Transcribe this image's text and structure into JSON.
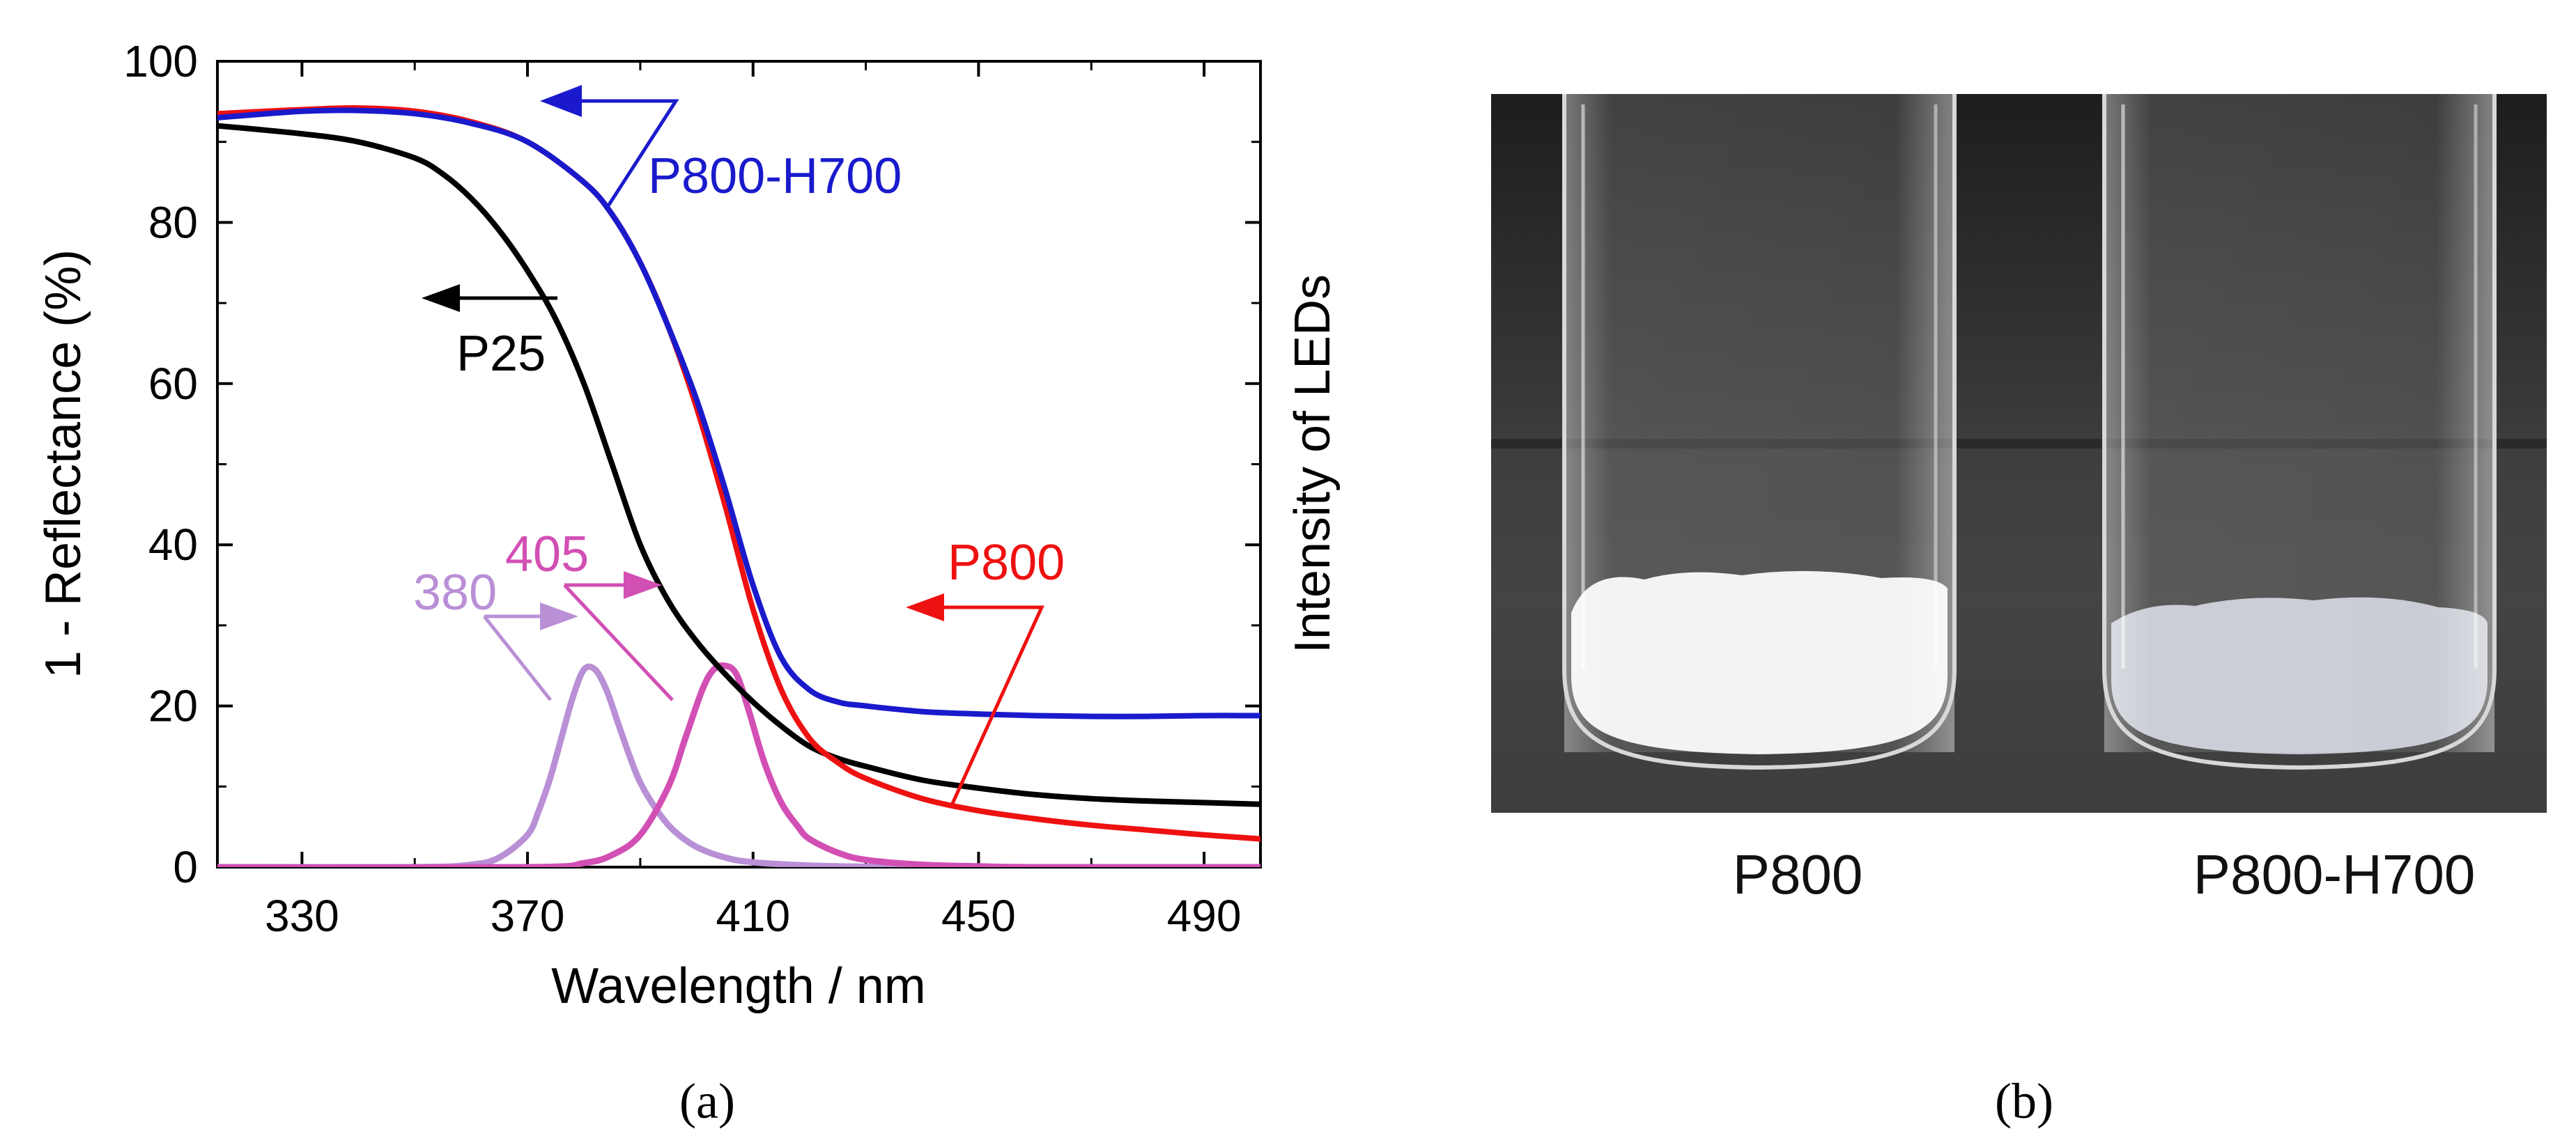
{
  "chart_data": {
    "type": "line",
    "xlabel": "Wavelength / nm",
    "ylabel": "1 - Reflectance (%)",
    "y2label": "Intensity of LEDs",
    "xlim": [
      315,
      500
    ],
    "ylim": [
      0,
      100
    ],
    "xticks": [
      330,
      370,
      410,
      450,
      490
    ],
    "yticks": [
      0,
      20,
      40,
      60,
      80,
      100
    ],
    "series": [
      {
        "name": "P800",
        "color": "#ee1111",
        "x": [
          315,
          330,
          340,
          350,
          360,
          370,
          380,
          385,
          390,
          395,
          400,
          405,
          410,
          415,
          420,
          425,
          430,
          440,
          450,
          460,
          470,
          480,
          490,
          500
        ],
        "y": [
          93.5,
          94.0,
          94.2,
          93.8,
          92.5,
          90.0,
          85.0,
          81.0,
          75.0,
          67.0,
          57.0,
          45.0,
          32.0,
          22.0,
          16.0,
          13.0,
          11.0,
          8.5,
          7.0,
          6.0,
          5.2,
          4.6,
          4.0,
          3.5
        ]
      },
      {
        "name": "P800-H700",
        "color": "#1a1acc",
        "x": [
          315,
          330,
          340,
          350,
          360,
          370,
          380,
          385,
          390,
          395,
          400,
          405,
          410,
          415,
          420,
          425,
          430,
          440,
          450,
          460,
          470,
          480,
          490,
          500
        ],
        "y": [
          93.0,
          93.8,
          93.9,
          93.5,
          92.3,
          90.0,
          85.0,
          81.0,
          75.0,
          67.0,
          58.0,
          47.0,
          35.0,
          26.0,
          22.0,
          20.5,
          20.0,
          19.3,
          19.0,
          18.8,
          18.7,
          18.7,
          18.8,
          18.8
        ]
      },
      {
        "name": "P25",
        "color": "#000000",
        "x": [
          315,
          330,
          340,
          350,
          355,
          360,
          365,
          370,
          375,
          380,
          385,
          390,
          395,
          400,
          405,
          410,
          415,
          420,
          425,
          430,
          440,
          450,
          460,
          470,
          480,
          490,
          500
        ],
        "y": [
          92.0,
          91.0,
          90.0,
          88.0,
          86.0,
          83.0,
          79.0,
          74.0,
          68.0,
          60.0,
          50.0,
          40.0,
          33.0,
          28.0,
          24.0,
          20.5,
          17.5,
          15.0,
          13.5,
          12.5,
          10.8,
          9.8,
          9.0,
          8.5,
          8.2,
          8.0,
          7.8
        ]
      },
      {
        "name": "380",
        "color": "#b98fd6",
        "x": [
          315,
          350,
          360,
          365,
          370,
          372,
          374,
          376,
          378,
          380,
          382,
          384,
          386,
          388,
          390,
          393,
          396,
          400,
          405,
          410,
          420,
          430,
          440,
          500
        ],
        "y": [
          0,
          0,
          0.3,
          1.2,
          4.0,
          7.0,
          11.0,
          16.0,
          21.0,
          24.5,
          24.5,
          22.0,
          18.0,
          14.0,
          10.5,
          7.0,
          4.5,
          2.5,
          1.2,
          0.6,
          0.2,
          0.05,
          0,
          0
        ]
      },
      {
        "name": "405",
        "color": "#d24fb4",
        "x": [
          315,
          370,
          380,
          385,
          390,
          395,
          398,
          401,
          403,
          405,
          407,
          409,
          412,
          415,
          418,
          420,
          425,
          430,
          440,
          450,
          460,
          500
        ],
        "y": [
          0,
          0,
          0.5,
          1.5,
          4.0,
          10.0,
          16.0,
          22.0,
          24.5,
          25.0,
          24.0,
          20.0,
          13.0,
          8.0,
          5.0,
          3.5,
          1.8,
          0.9,
          0.3,
          0.1,
          0,
          0
        ]
      }
    ],
    "annotations": [
      {
        "text": "P800-H700",
        "color": "#1a1acc"
      },
      {
        "text": "P25",
        "color": "#000000"
      },
      {
        "text": "P800",
        "color": "#ee1111"
      },
      {
        "text": "380",
        "color": "#b98fd6"
      },
      {
        "text": "405",
        "color": "#d24fb4"
      }
    ]
  },
  "panels": {
    "a_label": "(a)",
    "b_label": "(b)"
  },
  "photo": {
    "vial_left_label": "P800",
    "vial_right_label": "P800-H700",
    "powder_left_color": "#f2f2f3",
    "powder_right_color": "#c7cad3"
  }
}
